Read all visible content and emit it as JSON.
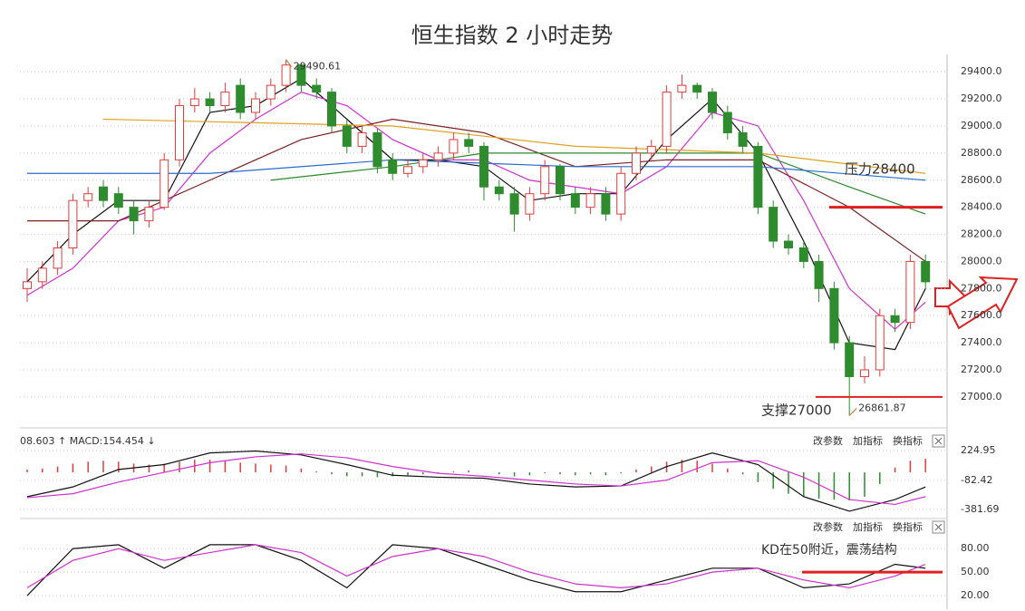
{
  "chart_data": [
    {
      "type": "candlestick",
      "title": "恒生指数 2 小时走势",
      "open": [
        27800,
        27850,
        27950,
        28100,
        28450,
        28550,
        28500,
        28400,
        28300,
        28400,
        28750,
        29150,
        29200,
        29150,
        29300,
        29100,
        29200,
        29300,
        29450,
        29300,
        29250,
        29000,
        28850,
        28950,
        28750,
        28650,
        28700,
        28750,
        28800,
        28900,
        28850,
        28550,
        28500,
        28350,
        28500,
        28700,
        28500,
        28400,
        28500,
        28350,
        28650,
        28800,
        28850,
        29250,
        29300,
        29250,
        29100,
        28950,
        28850,
        28400,
        28150,
        28100,
        28000,
        27800,
        27400,
        27150,
        27200,
        27600,
        27550,
        28000
      ],
      "high": [
        27950,
        28000,
        28150,
        28500,
        28550,
        28600,
        28550,
        28450,
        28450,
        28800,
        29200,
        29280,
        29250,
        29320,
        29350,
        29250,
        29350,
        29490.61,
        29460,
        29350,
        29280,
        29050,
        29000,
        28980,
        28800,
        28750,
        28800,
        28850,
        28950,
        28950,
        28880,
        28600,
        28550,
        28550,
        28750,
        28720,
        28550,
        28550,
        28550,
        28700,
        28850,
        28900,
        29300,
        29380,
        29320,
        29280,
        29150,
        29000,
        28880,
        28450,
        28200,
        28150,
        28050,
        27850,
        27450,
        27300,
        27650,
        27650,
        28050,
        28050
      ],
      "low": [
        27700,
        27800,
        27900,
        28050,
        28400,
        28400,
        28350,
        28200,
        28250,
        28380,
        28700,
        29100,
        29100,
        29100,
        29050,
        29050,
        29150,
        29250,
        29250,
        29200,
        28950,
        28800,
        28800,
        28650,
        28600,
        28620,
        28650,
        28700,
        28750,
        28800,
        28450,
        28450,
        28220,
        28300,
        28450,
        28450,
        28350,
        28350,
        28300,
        28300,
        28600,
        28750,
        28800,
        29200,
        29200,
        29050,
        28900,
        28800,
        28350,
        28100,
        28050,
        27950,
        27700,
        27350,
        26861.87,
        27100,
        27150,
        27480,
        27500,
        27800
      ],
      "close": [
        27850,
        27950,
        28100,
        28450,
        28500,
        28450,
        28400,
        28300,
        28400,
        28750,
        29150,
        29200,
        29150,
        29250,
        29100,
        29200,
        29300,
        29450,
        29300,
        29250,
        29000,
        28850,
        28950,
        28700,
        28650,
        28700,
        28750,
        28800,
        28900,
        28850,
        28550,
        28500,
        28350,
        28500,
        28700,
        28500,
        28400,
        28500,
        28350,
        28650,
        28800,
        28850,
        29250,
        29300,
        29250,
        29100,
        28950,
        28850,
        28400,
        28150,
        28100,
        28000,
        27800,
        27400,
        27150,
        27200,
        27600,
        27550,
        28000,
        27850
      ],
      "up_color": "#e03c3c",
      "down_color": "#2e8b2e",
      "ylim": [
        26785,
        29495
      ],
      "yticks": [
        {
          "value": 27000,
          "label": "27000.0"
        },
        {
          "value": 27200,
          "label": "27200.0"
        },
        {
          "value": 27400,
          "label": "27400.0"
        },
        {
          "value": 27600,
          "label": "27600.0"
        },
        {
          "value": 27800,
          "label": "27800.0"
        },
        {
          "value": 28000,
          "label": "28000.0"
        },
        {
          "value": 28200,
          "label": "28200.0"
        },
        {
          "value": 28400,
          "label": "28400.0"
        },
        {
          "value": 28600,
          "label": "28600.0"
        },
        {
          "value": 28800,
          "label": "28800.0"
        },
        {
          "value": 29000,
          "label": "29000.0"
        },
        {
          "value": 29200,
          "label": "29200.0"
        },
        {
          "value": 29400,
          "label": "29400.0"
        }
      ],
      "grid": true,
      "lines": [
        {
          "color": "#111111",
          "x": [
            0,
            3,
            6,
            9,
            12,
            15,
            18,
            21,
            24,
            27,
            30,
            33,
            36,
            39,
            42,
            45,
            48,
            51,
            54,
            57,
            59
          ],
          "values": [
            27850,
            28200,
            28450,
            28450,
            29100,
            29150,
            29350,
            29050,
            28750,
            28750,
            28700,
            28450,
            28500,
            28500,
            28900,
            29200,
            28800,
            28150,
            27400,
            27350,
            27800
          ]
        },
        {
          "color": "#d030d0",
          "x": [
            0,
            3,
            6,
            9,
            12,
            15,
            18,
            21,
            24,
            27,
            30,
            33,
            36,
            39,
            42,
            45,
            48,
            51,
            54,
            57,
            59
          ],
          "values": [
            27750,
            27950,
            28300,
            28400,
            28800,
            29050,
            29250,
            29150,
            28900,
            28750,
            28750,
            28600,
            28550,
            28500,
            28700,
            29100,
            29000,
            28450,
            27800,
            27500,
            27700
          ]
        },
        {
          "color": "#7a2020",
          "x": [
            0,
            6,
            12,
            18,
            24,
            30,
            36,
            42,
            48,
            54,
            59
          ],
          "values": [
            28300,
            28300,
            28600,
            28900,
            29050,
            28950,
            28700,
            28750,
            28750,
            28400,
            28000
          ]
        },
        {
          "color": "#2a8a2a",
          "x": [
            16,
            24,
            30,
            36,
            42,
            48,
            54,
            59
          ],
          "values": [
            28600,
            28700,
            28800,
            28800,
            28800,
            28800,
            28550,
            28350
          ]
        },
        {
          "color": "#2a6ad0",
          "x": [
            0,
            12,
            24,
            36,
            48,
            59
          ],
          "values": [
            28650,
            28650,
            28750,
            28700,
            28700,
            28600
          ]
        },
        {
          "color": "#e0a020",
          "x": [
            5,
            24,
            36,
            48,
            59
          ],
          "values": [
            29050,
            29000,
            28850,
            28800,
            28650
          ]
        }
      ],
      "resistance": {
        "label": "压力28400",
        "value": 28400
      },
      "support": {
        "label": "支撑27000",
        "value": 27000
      }
    },
    {
      "type": "macd",
      "header": "08.603 ↑ MACD:154.454 ↓",
      "controls": [
        "改参数",
        "加指标",
        "换指标"
      ],
      "values": [
        30,
        40,
        60,
        90,
        110,
        120,
        110,
        90,
        80,
        90,
        110,
        130,
        130,
        120,
        100,
        90,
        80,
        70,
        40,
        10,
        -20,
        -40,
        -40,
        -50,
        -40,
        -30,
        -20,
        -10,
        10,
        20,
        0,
        -20,
        -40,
        -30,
        -10,
        -20,
        -30,
        -20,
        -30,
        -10,
        30,
        60,
        110,
        130,
        120,
        90,
        40,
        -20,
        -100,
        -170,
        -220,
        -250,
        -270,
        -280,
        -290,
        -250,
        -120,
        50,
        120,
        140
      ],
      "up_color": "#e03c3c",
      "down_color": "#2e8b2e",
      "series": [
        {
          "color": "#111111",
          "x": [
            0,
            3,
            6,
            9,
            12,
            15,
            18,
            21,
            24,
            27,
            30,
            33,
            36,
            39,
            42,
            45,
            48,
            51,
            54,
            57,
            59
          ],
          "values": [
            -250,
            -150,
            30,
            80,
            200,
            220,
            180,
            80,
            -30,
            -50,
            -60,
            -120,
            -150,
            -140,
            60,
            200,
            80,
            -250,
            -400,
            -280,
            -150
          ]
        },
        {
          "color": "#d030d0",
          "x": [
            0,
            3,
            6,
            9,
            12,
            15,
            18,
            21,
            24,
            27,
            30,
            33,
            36,
            39,
            42,
            45,
            48,
            51,
            54,
            57,
            59
          ],
          "values": [
            -260,
            -220,
            -100,
            0,
            100,
            160,
            190,
            150,
            60,
            -10,
            -40,
            -80,
            -120,
            -140,
            -80,
            100,
            120,
            -50,
            -280,
            -330,
            -250
          ]
        }
      ],
      "ylim": [
        -438,
        402
      ],
      "yticks": [
        224.95,
        -82.42,
        -381.69
      ]
    },
    {
      "type": "kd",
      "controls": [
        "改参数",
        "加指标",
        "换指标"
      ],
      "series": [
        {
          "color": "#111111",
          "x": [
            0,
            3,
            6,
            9,
            12,
            15,
            18,
            21,
            24,
            27,
            30,
            33,
            36,
            39,
            42,
            45,
            48,
            51,
            54,
            57,
            59
          ],
          "values": [
            20,
            80,
            85,
            55,
            85,
            85,
            65,
            30,
            85,
            80,
            60,
            40,
            25,
            25,
            40,
            55,
            55,
            30,
            35,
            60,
            55
          ]
        },
        {
          "color": "#d030d0",
          "x": [
            0,
            3,
            6,
            9,
            12,
            15,
            18,
            21,
            24,
            27,
            30,
            33,
            36,
            39,
            42,
            45,
            48,
            51,
            54,
            57,
            59
          ],
          "values": [
            30,
            65,
            80,
            65,
            75,
            85,
            75,
            45,
            70,
            80,
            70,
            50,
            35,
            30,
            35,
            50,
            55,
            40,
            30,
            45,
            60
          ]
        }
      ],
      "ylim": [
        5,
        115
      ],
      "yticks": [
        {
          "value": 80,
          "label": "80.00"
        },
        {
          "value": 50,
          "label": "50.00"
        },
        {
          "value": 20,
          "label": "20.00"
        }
      ],
      "annotation": {
        "label": "KD在50附近，震荡结构",
        "value": 50
      }
    }
  ]
}
